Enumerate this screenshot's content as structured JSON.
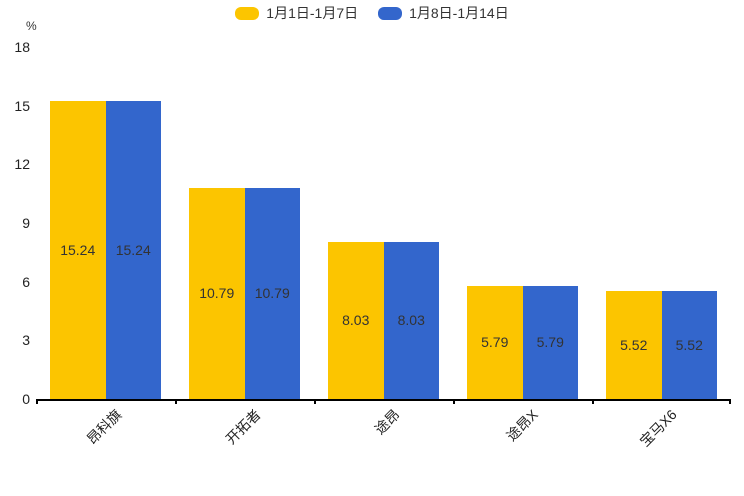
{
  "chart_data": {
    "type": "bar",
    "categories": [
      "昂科旗",
      "开拓者",
      "途昂",
      "途昂X",
      "宝马X6"
    ],
    "series": [
      {
        "name": "1月1日-1月7日",
        "color": "#FCC500",
        "values": [
          15.24,
          10.79,
          8.03,
          5.79,
          5.52
        ]
      },
      {
        "name": "1月8日-1月14日",
        "color": "#3366CC",
        "values": [
          15.24,
          10.79,
          8.03,
          5.79,
          5.52
        ]
      }
    ],
    "title": "",
    "xlabel": "",
    "ylabel": "%",
    "ylim": [
      0,
      18
    ],
    "yticks": [
      0,
      3,
      6,
      9,
      12,
      15,
      18
    ],
    "grid": false,
    "legend_position": "top",
    "bar_value_labels": true,
    "axis_color": "#000000",
    "label_color": "#333333"
  }
}
